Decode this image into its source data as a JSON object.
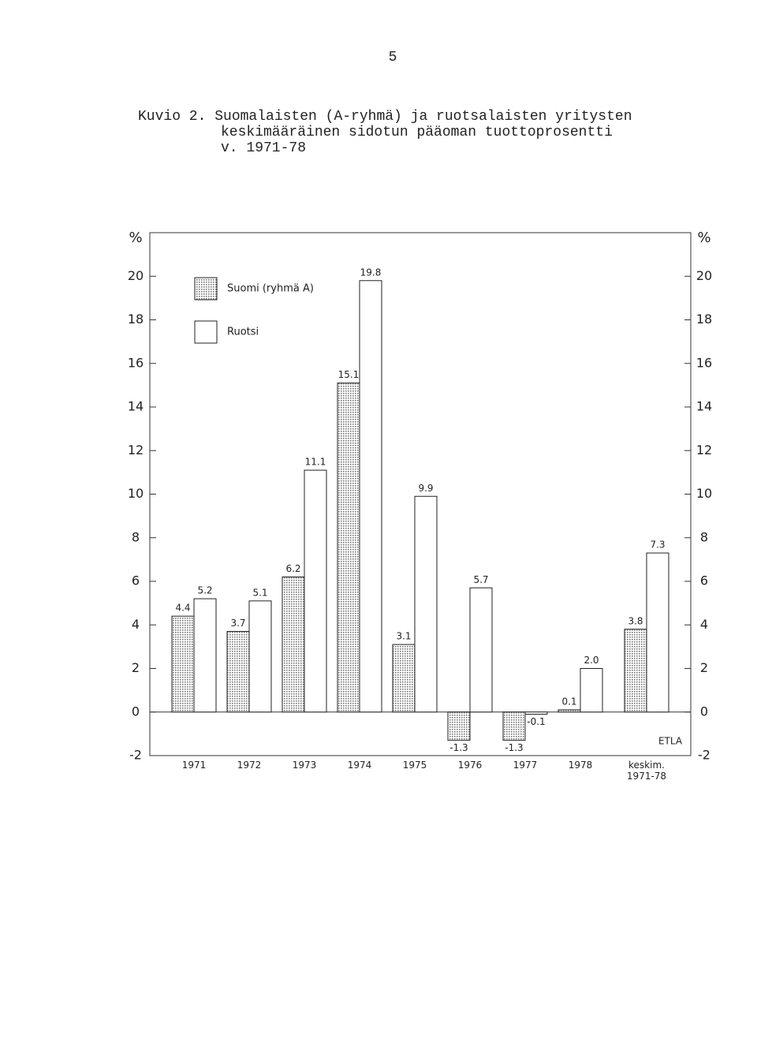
{
  "page_number": "5",
  "chart_data": {
    "type": "bar",
    "title": [
      "Kuvio 2. Suomalaisten (A-ryhmä) ja ruotsalaisten yritysten",
      "keskimääräinen sidotun pääoman tuottoprosentti",
      "v. 1971-78"
    ],
    "y_label": "%",
    "categories": [
      "1971",
      "1972",
      "1973",
      "1974",
      "1975",
      "1976",
      "1977",
      "1978",
      "keskim.\n1971-78"
    ],
    "series": [
      {
        "name": "Suomi (ryhmä A)",
        "color": "#999999",
        "pattern": "dots",
        "values": [
          4.4,
          3.7,
          6.2,
          15.1,
          3.1,
          -1.3,
          -1.3,
          0.1,
          3.8
        ],
        "value_labels": [
          "4.4",
          "3.7",
          "6.2",
          "15.1",
          "3.1",
          "-1.3",
          "-1.3",
          "0.1",
          "3.8"
        ]
      },
      {
        "name": "Ruotsi",
        "color": "#ffffff",
        "values": [
          5.2,
          5.1,
          11.1,
          19.8,
          9.9,
          5.7,
          -0.1,
          2.0,
          7.3
        ],
        "value_labels": [
          "5.2",
          "5.1",
          "11.1",
          "19.8",
          "9.9",
          "5.7",
          "-0.1",
          "2.0",
          "7.3"
        ]
      }
    ],
    "ylim": [
      -2,
      22
    ],
    "yticks": [
      -2,
      0,
      2,
      4,
      6,
      8,
      10,
      12,
      14,
      16,
      18,
      20
    ],
    "annotation": "ETLA"
  }
}
